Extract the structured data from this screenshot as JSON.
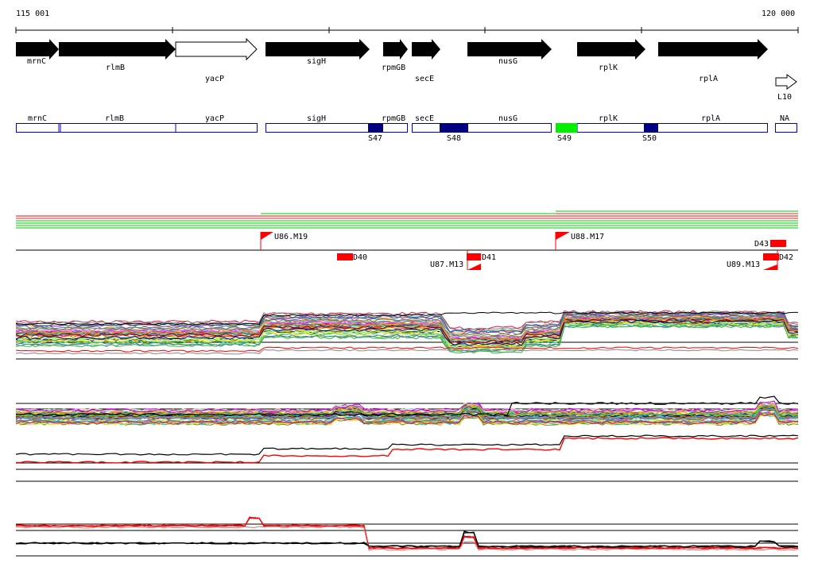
{
  "coordinate_range": {
    "start": "115 001",
    "end": "120 000",
    "start_bp": 115001,
    "end_bp": 120000
  },
  "genes": [
    {
      "name": "mrnC",
      "strand": "+",
      "filled": true
    },
    {
      "name": "rlmB",
      "strand": "+",
      "filled": true
    },
    {
      "name": "yacP",
      "strand": "+",
      "filled": false
    },
    {
      "name": "sigH",
      "strand": "+",
      "filled": true
    },
    {
      "name": "rpmGB",
      "strand": "+",
      "filled": true
    },
    {
      "name": "secE",
      "strand": "+",
      "filled": true
    },
    {
      "name": "nusG",
      "strand": "+",
      "filled": true
    },
    {
      "name": "rplK",
      "strand": "+",
      "filled": true
    },
    {
      "name": "rplA",
      "strand": "+",
      "filled": true
    },
    {
      "name": "L10",
      "strand": "+",
      "filled": false
    }
  ],
  "transcription_units": [
    {
      "label": "mrnC"
    },
    {
      "label": "rlmB"
    },
    {
      "label": "yacP"
    },
    {
      "label": "sigH"
    },
    {
      "label": "rpmGB"
    },
    {
      "label": "secE"
    },
    {
      "label": "nusG"
    },
    {
      "label": "rplK"
    },
    {
      "label": "rplA"
    },
    {
      "label": "NA"
    }
  ],
  "sites": [
    {
      "label": "S47",
      "color": "#000080"
    },
    {
      "label": "S48",
      "color": "#000080"
    },
    {
      "label": "S49",
      "color": "#00ee00"
    },
    {
      "label": "S50",
      "color": "#000080"
    }
  ],
  "upshifts": [
    {
      "label": "U86.M19"
    },
    {
      "label": "U87.M13"
    },
    {
      "label": "U88.M17"
    },
    {
      "label": "U89.M13"
    }
  ],
  "downshifts": [
    {
      "label": "D40"
    },
    {
      "label": "D41"
    },
    {
      "label": "D42"
    },
    {
      "label": "D43"
    }
  ],
  "colors": {
    "gene_fill": "#000000",
    "tu_stroke": "#0000cc",
    "flag": "#ff0000",
    "segment_red": "#ff0000",
    "segment_green": "#00cc00"
  }
}
